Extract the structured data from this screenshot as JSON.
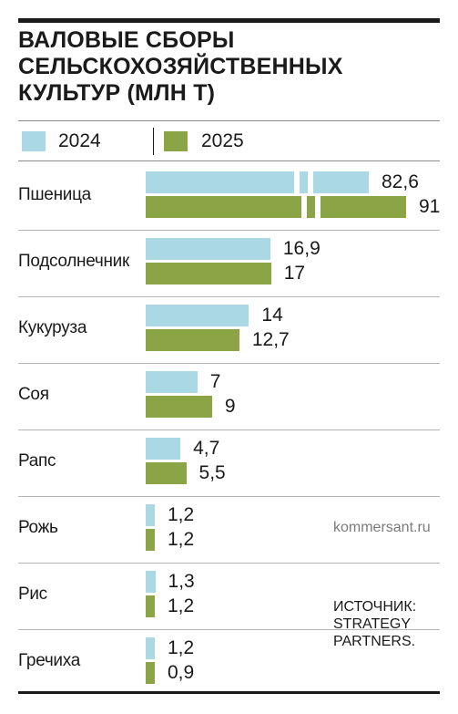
{
  "title": "ВАЛОВЫЕ СБОРЫ СЕЛЬСКОХОЗЯЙСТВЕННЫХ КУЛЬТУР (МЛН Т)",
  "legend": [
    {
      "label": "2024",
      "color": "#aad8e4"
    },
    {
      "label": "2025",
      "color": "#8ba446"
    }
  ],
  "chart_data": {
    "type": "bar",
    "orientation": "horizontal",
    "title": "ВАЛОВЫЕ СБОРЫ СЕЛЬСКОХОЗЯЙСТВЕННЫХ КУЛЬТУР (МЛН Т)",
    "categories": [
      "Пшеница",
      "Подсолнечник",
      "Кукуруза",
      "Соя",
      "Рапс",
      "Рожь",
      "Рис",
      "Гречиха"
    ],
    "series": [
      {
        "name": "2024",
        "color": "#aad8e4",
        "values": [
          82.6,
          16.9,
          14,
          7,
          4.7,
          1.2,
          1.3,
          1.2
        ],
        "labels": [
          "82,6",
          "16,9",
          "14",
          "7",
          "4,7",
          "1,2",
          "1,3",
          "1,2"
        ]
      },
      {
        "name": "2025",
        "color": "#8ba446",
        "values": [
          91,
          17,
          12.7,
          9,
          5.5,
          1.2,
          1.2,
          0.9
        ],
        "labels": [
          "91",
          "17",
          "12,7",
          "9",
          "5,5",
          "1,2",
          "1,2",
          "0,9"
        ]
      }
    ],
    "broken_axis_category": "Пшеница",
    "legend_position": "top"
  },
  "credit": "kommersant.ru",
  "source": "ИСТОЧНИК: STRATEGY PARTNERS."
}
